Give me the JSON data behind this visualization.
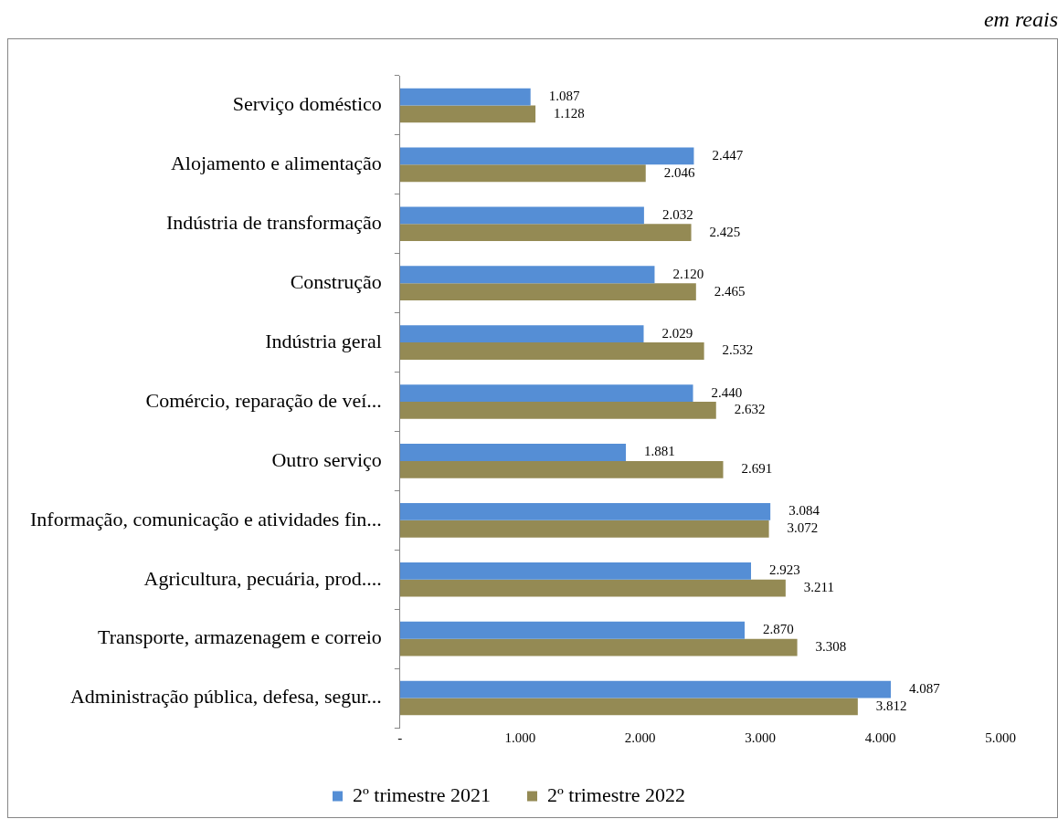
{
  "chart_data": {
    "type": "bar",
    "orientation": "horizontal",
    "categories": [
      "Serviço doméstico",
      "Alojamento e alimentação",
      "Indústria de transformação",
      "Construção",
      "Indústria geral",
      "Comércio, reparação de veí...",
      "Outro serviço",
      "Informação, comunicação e atividades fin...",
      "Agricultura, pecuária, prod....",
      "Transporte, armazenagem e correio",
      "Administração pública, defesa, segur..."
    ],
    "series": [
      {
        "name": "2º trimestre 2021",
        "color": "#558ed5",
        "values": [
          1087,
          2447,
          2032,
          2120,
          2029,
          2440,
          1881,
          3084,
          2923,
          2870,
          4087
        ],
        "value_labels": [
          "1.087",
          "2.447",
          "2.032",
          "2.120",
          "2.029",
          "2.440",
          "1.881",
          "3.084",
          "2.923",
          "2.870",
          "4.087"
        ]
      },
      {
        "name": "2º trimestre 2022",
        "color": "#948a54",
        "values": [
          1128,
          2046,
          2425,
          2465,
          2532,
          2632,
          2691,
          3072,
          3211,
          3308,
          3812
        ],
        "value_labels": [
          "1.128",
          "2.046",
          "2.425",
          "2.465",
          "2.532",
          "2.632",
          "2.691",
          "3.072",
          "3.211",
          "3.308",
          "3.812"
        ]
      }
    ],
    "xlim": [
      0,
      5000
    ],
    "xticks": [
      {
        "value": 0,
        "label": "-"
      },
      {
        "value": 1000,
        "label": "1.000"
      },
      {
        "value": 2000,
        "label": "2.000"
      },
      {
        "value": 3000,
        "label": "3.000"
      },
      {
        "value": 4000,
        "label": "4.000"
      },
      {
        "value": 5000,
        "label": "5.000"
      }
    ],
    "legend": "bottom",
    "grid": false,
    "annotations": [
      "em reais"
    ]
  }
}
